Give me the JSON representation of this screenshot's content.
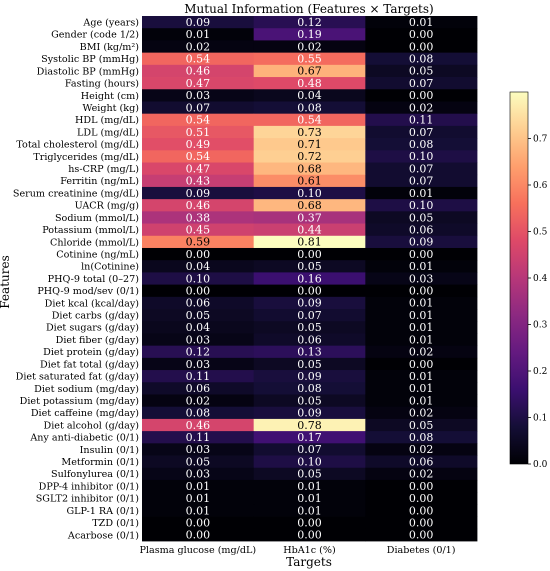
{
  "chart_data": {
    "type": "heatmap",
    "title": "Mutual Information (Features × Targets)",
    "xlabel": "Targets",
    "ylabel": "Features",
    "columns": [
      "Plasma glucose (mg/dL)",
      "HbA1c (%)",
      "Diabetes (0/1)"
    ],
    "rows": [
      "Age (years)",
      "Gender (code 1/2)",
      "BMI (kg/m²)",
      "Systolic BP (mmHg)",
      "Diastolic BP (mmHg)",
      "Fasting (hours)",
      "Height (cm)",
      "Weight (kg)",
      "HDL (mg/dL)",
      "LDL (mg/dL)",
      "Total cholesterol (mg/dL)",
      "Triglycerides (mg/dL)",
      "hs-CRP (mg/L)",
      "Ferritin (ng/mL)",
      "Serum creatinine (mg/dL)",
      "UACR (mg/g)",
      "Sodium (mmol/L)",
      "Potassium (mmol/L)",
      "Chloride (mmol/L)",
      "Cotinine (ng/mL)",
      "ln(Cotinine)",
      "PHQ-9 total (0–27)",
      "PHQ-9 mod/sev (0/1)",
      "Diet kcal (kcal/day)",
      "Diet carbs (g/day)",
      "Diet sugars (g/day)",
      "Diet fiber (g/day)",
      "Diet protein (g/day)",
      "Diet fat total (g/day)",
      "Diet saturated fat (g/day)",
      "Diet sodium (mg/day)",
      "Diet potassium (mg/day)",
      "Diet caffeine (mg/day)",
      "Diet alcohol (g/day)",
      "Any anti-diabetic (0/1)",
      "Insulin (0/1)",
      "Metformin (0/1)",
      "Sulfonylurea (0/1)",
      "DPP-4 inhibitor (0/1)",
      "SGLT2 inhibitor (0/1)",
      "GLP-1 RA (0/1)",
      "TZD (0/1)",
      "Acarbose (0/1)"
    ],
    "values": [
      [
        0.09,
        0.12,
        0.01
      ],
      [
        0.01,
        0.19,
        0.0
      ],
      [
        0.02,
        0.02,
        0.0
      ],
      [
        0.54,
        0.55,
        0.08
      ],
      [
        0.46,
        0.67,
        0.05
      ],
      [
        0.47,
        0.48,
        0.07
      ],
      [
        0.03,
        0.04,
        0.0
      ],
      [
        0.07,
        0.08,
        0.02
      ],
      [
        0.54,
        0.54,
        0.11
      ],
      [
        0.51,
        0.73,
        0.07
      ],
      [
        0.49,
        0.71,
        0.08
      ],
      [
        0.54,
        0.72,
        0.1
      ],
      [
        0.47,
        0.68,
        0.07
      ],
      [
        0.43,
        0.61,
        0.07
      ],
      [
        0.09,
        0.1,
        0.01
      ],
      [
        0.46,
        0.68,
        0.1
      ],
      [
        0.38,
        0.37,
        0.05
      ],
      [
        0.45,
        0.44,
        0.06
      ],
      [
        0.59,
        0.81,
        0.09
      ],
      [
        0.0,
        0.0,
        0.0
      ],
      [
        0.04,
        0.05,
        0.01
      ],
      [
        0.1,
        0.16,
        0.03
      ],
      [
        0.0,
        0.0,
        0.0
      ],
      [
        0.06,
        0.09,
        0.01
      ],
      [
        0.05,
        0.07,
        0.01
      ],
      [
        0.04,
        0.05,
        0.01
      ],
      [
        0.03,
        0.06,
        0.01
      ],
      [
        0.12,
        0.13,
        0.02
      ],
      [
        0.03,
        0.05,
        0.0
      ],
      [
        0.11,
        0.09,
        0.01
      ],
      [
        0.06,
        0.08,
        0.01
      ],
      [
        0.02,
        0.05,
        0.01
      ],
      [
        0.08,
        0.09,
        0.02
      ],
      [
        0.46,
        0.78,
        0.05
      ],
      [
        0.11,
        0.17,
        0.08
      ],
      [
        0.03,
        0.07,
        0.02
      ],
      [
        0.05,
        0.1,
        0.06
      ],
      [
        0.03,
        0.05,
        0.02
      ],
      [
        0.01,
        0.01,
        0.0
      ],
      [
        0.01,
        0.01,
        0.0
      ],
      [
        0.01,
        0.01,
        0.0
      ],
      [
        0.0,
        0.0,
        0.0
      ],
      [
        0.0,
        0.0,
        0.0
      ]
    ],
    "colormap": "magma",
    "value_range": [
      0.0,
      0.8
    ],
    "colorbar_ticks": [
      "0.0",
      "0.1",
      "0.2",
      "0.3",
      "0.4",
      "0.5",
      "0.6",
      "0.7"
    ],
    "colorbar_tick_values": [
      0.0,
      0.1,
      0.2,
      0.3,
      0.4,
      0.5,
      0.6,
      0.7
    ],
    "grid": false,
    "legend": "colorbar-right"
  }
}
